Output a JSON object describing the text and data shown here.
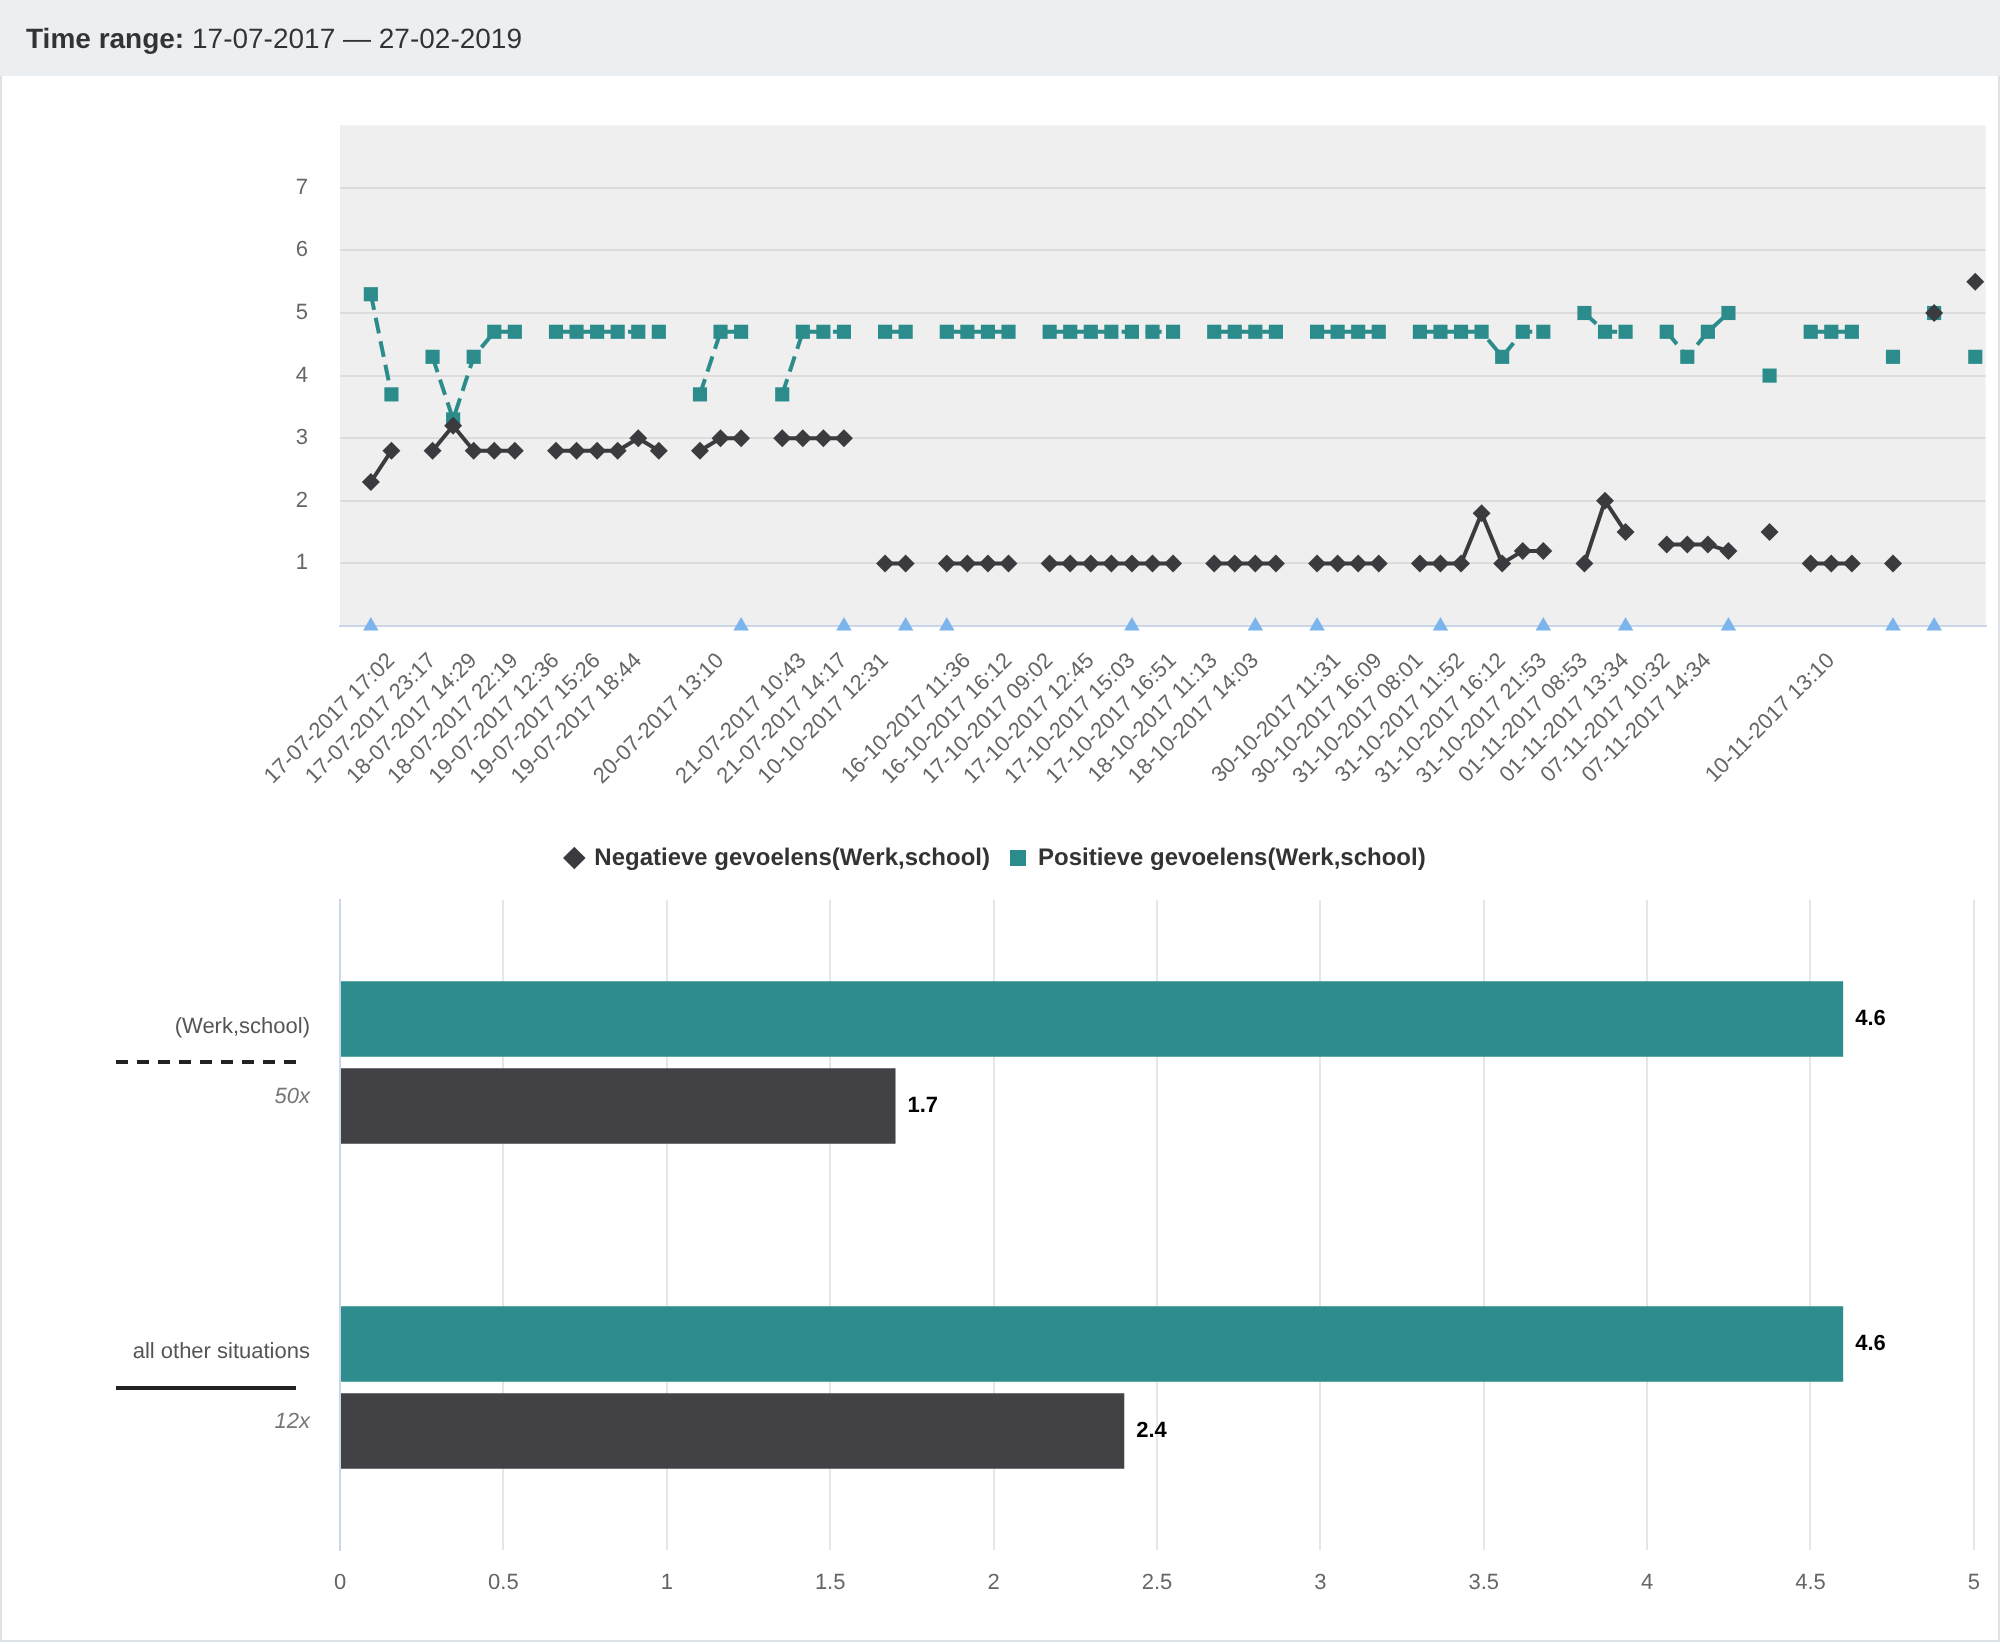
{
  "chart_data": [
    {
      "type": "line",
      "title": "Time range: 17-07-2017 — 27-02-2019",
      "categories": [
        null,
        null,
        "17-07-2017 17:02",
        null,
        "17-07-2017 23:17",
        null,
        "18-07-2017 14:29",
        null,
        "18-07-2017 22:19",
        null,
        "19-07-2017 12:36",
        null,
        "19-07-2017 15:26",
        null,
        "19-07-2017 18:44",
        null,
        null,
        null,
        "20-07-2017 13:10",
        null,
        null,
        null,
        "21-07-2017 10:43",
        null,
        "21-07-2017 14:17",
        null,
        "10-10-2017 12:31",
        null,
        null,
        null,
        "16-10-2017 11:36",
        null,
        "16-10-2017 16:12",
        null,
        "17-10-2017 09:02",
        null,
        "17-10-2017 12:45",
        null,
        "17-10-2017 15:03",
        null,
        "17-10-2017 16:51",
        null,
        "18-10-2017 11:13",
        null,
        "18-10-2017 14:03",
        null,
        null,
        null,
        "30-10-2017 11:31",
        null,
        "30-10-2017 16:09",
        null,
        "31-10-2017 08:01",
        null,
        "31-10-2017 11:52",
        null,
        "31-10-2017 16:12",
        null,
        "31-10-2017 21:53",
        null,
        "01-11-2017 08:53",
        null,
        "01-11-2017 13:34",
        null,
        "07-11-2017 10:32",
        null,
        "07-11-2017 14:34",
        null,
        null,
        null,
        null,
        null,
        "10-11-2017 13:10",
        null,
        null,
        null,
        null,
        null,
        null,
        null
      ],
      "series": [
        {
          "name": "Positieve gevoelens(Werk,school)",
          "type": "line",
          "color": "#2b8c8b",
          "marker": "square",
          "line_style": "dashed",
          "values": [
            null,
            5.3,
            3.7,
            null,
            4.3,
            3.3,
            4.3,
            4.7,
            4.7,
            null,
            4.7,
            4.7,
            4.7,
            4.7,
            4.7,
            4.7,
            null,
            3.7,
            4.7,
            4.7,
            null,
            3.7,
            4.7,
            4.7,
            4.7,
            null,
            4.7,
            4.7,
            null,
            4.7,
            4.7,
            4.7,
            4.7,
            null,
            4.7,
            4.7,
            4.7,
            4.7,
            4.7,
            4.7,
            4.7,
            null,
            4.7,
            4.7,
            4.7,
            4.7,
            null,
            4.7,
            4.7,
            4.7,
            4.7,
            null,
            4.7,
            4.7,
            4.7,
            4.7,
            4.3,
            4.7,
            4.7,
            null,
            5,
            4.7,
            4.7,
            null,
            4.7,
            4.3,
            4.7,
            5,
            null,
            4,
            null,
            4.7,
            4.7,
            4.7,
            null,
            4.3,
            null,
            5,
            null,
            4.3
          ]
        },
        {
          "name": "Negatieve gevoelens(Werk,school)",
          "type": "line",
          "color": "#3b3b3f",
          "marker": "diamond",
          "line_style": "solid",
          "values": [
            null,
            2.3,
            2.8,
            null,
            2.8,
            3.2,
            2.8,
            2.8,
            2.8,
            null,
            2.8,
            2.8,
            2.8,
            2.8,
            3,
            2.8,
            null,
            2.8,
            3,
            3,
            null,
            3,
            3,
            3,
            3,
            null,
            1,
            1,
            null,
            1,
            1,
            1,
            1,
            null,
            1,
            1,
            1,
            1,
            1,
            1,
            1,
            null,
            1,
            1,
            1,
            1,
            null,
            1,
            1,
            1,
            1,
            null,
            1,
            1,
            1,
            1.8,
            1,
            1.2,
            1.2,
            null,
            1,
            2,
            1.5,
            null,
            1.3,
            1.3,
            1.3,
            1.2,
            null,
            1.5,
            null,
            1,
            1,
            1,
            null,
            1,
            null,
            5,
            null,
            5.5
          ]
        },
        {
          "type": "scatter",
          "color": "#7cb5ec",
          "marker": "triangle",
          "values": [
            null,
            0,
            null,
            null,
            null,
            null,
            null,
            null,
            null,
            null,
            null,
            null,
            null,
            null,
            null,
            null,
            null,
            null,
            null,
            0,
            null,
            null,
            null,
            null,
            0,
            null,
            null,
            0,
            null,
            0,
            null,
            null,
            null,
            null,
            null,
            null,
            null,
            null,
            0,
            null,
            null,
            null,
            null,
            null,
            0,
            null,
            null,
            0,
            null,
            null,
            null,
            null,
            null,
            0,
            null,
            null,
            null,
            null,
            0,
            null,
            null,
            null,
            0,
            null,
            null,
            null,
            null,
            0,
            null,
            null,
            null,
            null,
            null,
            null,
            null,
            0,
            null,
            0,
            null,
            null
          ]
        }
      ],
      "ylim": [
        0,
        8
      ],
      "yticks": [
        1,
        2,
        3,
        4,
        5,
        6,
        7
      ],
      "grid": "y",
      "legend": "bottom"
    },
    {
      "type": "bar",
      "orientation": "horizontal",
      "categories": [
        "(Werk,school)",
        "all other situations"
      ],
      "series": [
        {
          "color": "#2e8d8c",
          "values": [
            4.6,
            4.6
          ]
        },
        {
          "color": "#424246",
          "values": [
            1.7,
            2.4
          ]
        }
      ],
      "xlim": [
        0,
        5
      ],
      "xticks": [
        0,
        0.5,
        1,
        1.5,
        2,
        2.5,
        3,
        3.5,
        4,
        4.5,
        5
      ],
      "grid": "x",
      "data_labels": true,
      "annotations": [
        "50x",
        "12x"
      ]
    }
  ]
}
